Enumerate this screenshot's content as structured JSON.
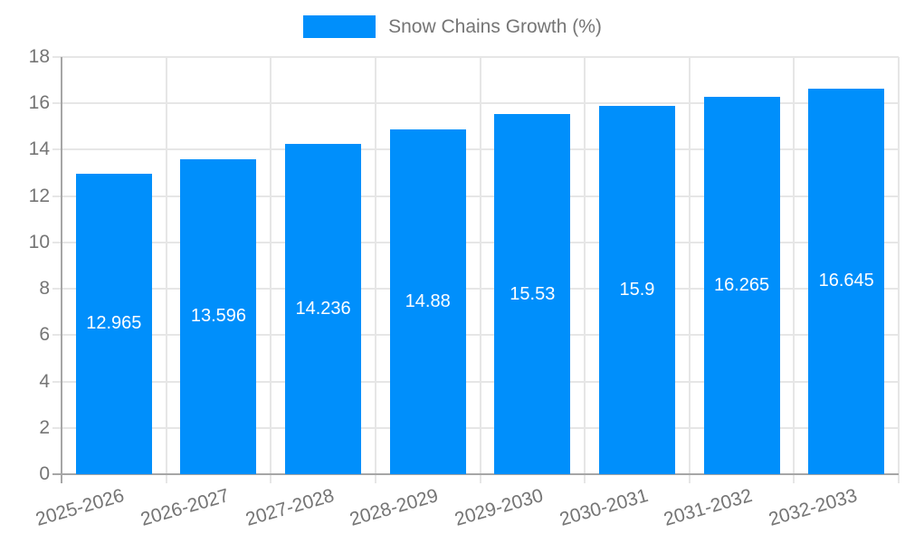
{
  "legend": {
    "label": "Snow Chains Growth (%)"
  },
  "colors": {
    "bar": "#008FFB",
    "bar_label_text": "#FFFFFF",
    "axis_text": "#757575",
    "grid_line": "#E6E6E6",
    "axis_line": "#A6A6A6",
    "background": "#FFFFFF"
  },
  "chart_data": {
    "type": "bar",
    "title": "",
    "legend_position": "top",
    "categories": [
      "2025-2026",
      "2026-2027",
      "2027-2028",
      "2028-2029",
      "2029-2030",
      "2030-2031",
      "2031-2032",
      "2032-2033"
    ],
    "series": [
      {
        "name": "Snow Chains Growth (%)",
        "values": [
          12.965,
          13.596,
          14.236,
          14.88,
          15.53,
          15.9,
          16.265,
          16.645
        ]
      }
    ],
    "bar_value_labels": [
      "12.965",
      "13.596",
      "14.236",
      "14.88",
      "15.53",
      "15.9",
      "16.265",
      "16.645"
    ],
    "xlabel": "",
    "ylabel": "",
    "ylim": [
      0,
      18
    ],
    "yticks": [
      0,
      2,
      4,
      6,
      8,
      10,
      12,
      14,
      16,
      18
    ],
    "grid": true,
    "x_label_rotation_deg": -16
  }
}
